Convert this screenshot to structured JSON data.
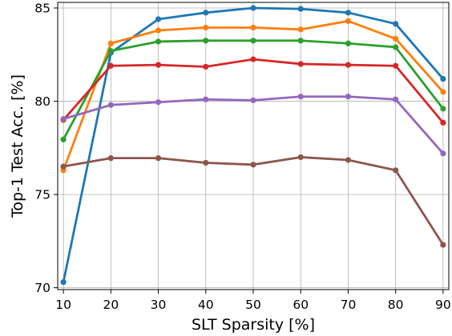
{
  "chart_data": {
    "type": "line",
    "title": "",
    "xlabel": "SLT Sparsity [%]",
    "ylabel": "Top-1 Test Acc. [%]",
    "x": [
      10,
      20,
      30,
      40,
      50,
      60,
      70,
      80,
      90
    ],
    "x_ticks": [
      "10",
      "20",
      "30",
      "40",
      "50",
      "60",
      "70",
      "80",
      "90"
    ],
    "y_ticks": [
      "70",
      "75",
      "80",
      "85"
    ],
    "xlim": [
      8.8,
      91.2
    ],
    "ylim": [
      69.9,
      85.3
    ],
    "grid": true,
    "series": [
      {
        "color": "#1f77b4",
        "values": [
          70.3,
          82.6,
          84.4,
          84.75,
          85.0,
          84.95,
          84.75,
          84.15,
          81.2
        ]
      },
      {
        "color": "#ff7f0e",
        "values": [
          76.3,
          83.1,
          83.8,
          83.95,
          83.95,
          83.85,
          84.3,
          83.35,
          80.5
        ]
      },
      {
        "color": "#2ca02c",
        "values": [
          77.95,
          82.7,
          83.2,
          83.25,
          83.25,
          83.25,
          83.1,
          82.9,
          79.6
        ]
      },
      {
        "color": "#d62728",
        "values": [
          79.0,
          81.9,
          81.95,
          81.85,
          82.25,
          82.0,
          81.95,
          81.9,
          78.85
        ]
      },
      {
        "color": "#9467bd",
        "values": [
          79.05,
          79.8,
          79.95,
          80.1,
          80.05,
          80.25,
          80.25,
          80.1,
          77.2
        ]
      },
      {
        "color": "#8c564b",
        "values": [
          76.5,
          76.95,
          76.95,
          76.7,
          76.6,
          77.0,
          76.85,
          76.3,
          72.3
        ]
      }
    ]
  }
}
